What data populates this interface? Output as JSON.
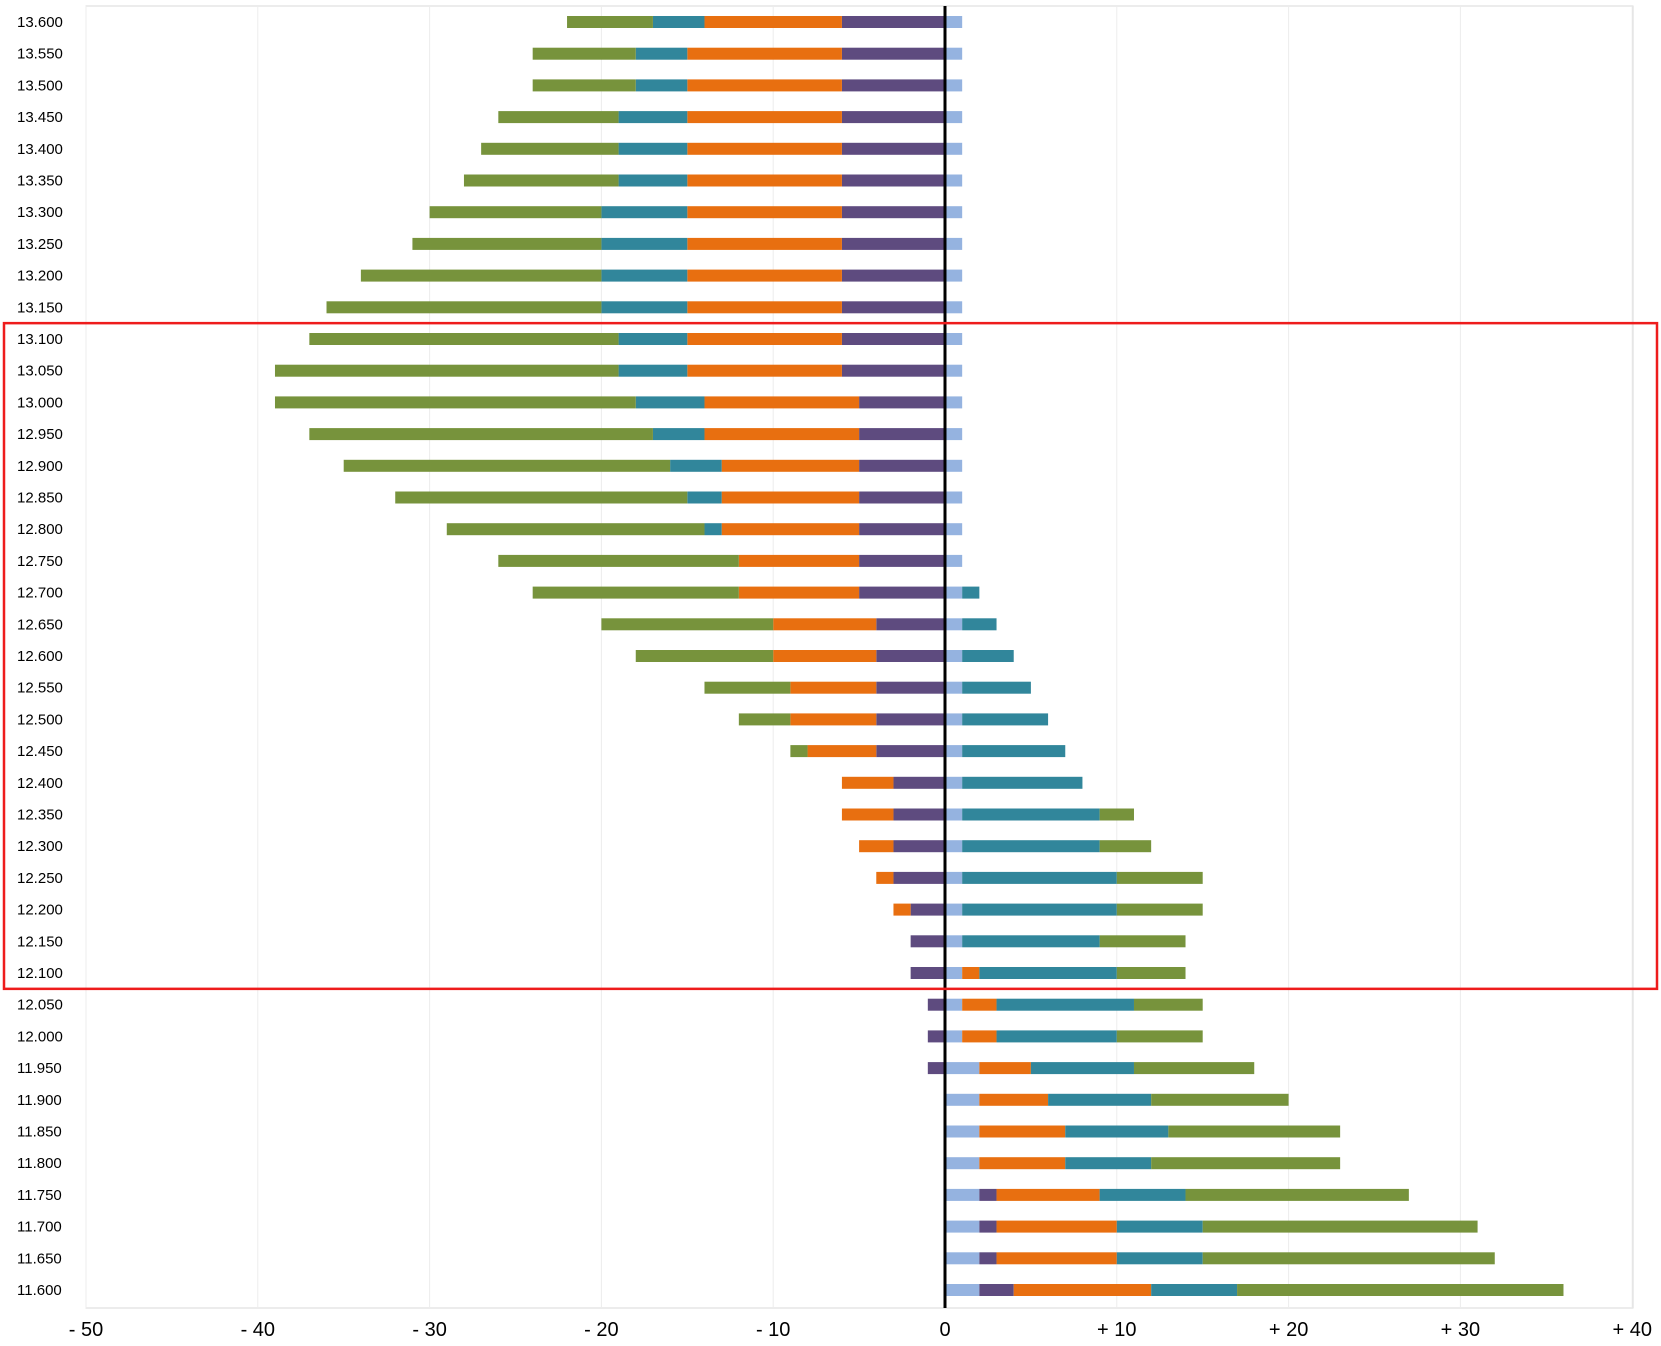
{
  "chart_data": {
    "type": "bar",
    "orientation": "horizontal",
    "stacked": "diverging",
    "xlim": [
      -50,
      40
    ],
    "x_ticks": [
      -50,
      -40,
      -30,
      -20,
      -10,
      0,
      10,
      20,
      30,
      40
    ],
    "x_tick_labels": [
      "- 50",
      "- 40",
      "- 30",
      "- 20",
      "- 10",
      "0",
      "+ 10",
      "+ 20",
      "+ 30",
      "+ 40"
    ],
    "grid": "vertical",
    "zero_line": true,
    "colors": {
      "purple": "#5e4b7f",
      "orange": "#e86f10",
      "teal": "#31869b",
      "green": "#77933c",
      "lightblue": "#95b3e0"
    },
    "highlight": {
      "from": "13.100",
      "to": "12.100",
      "color": "#ee1c1c"
    },
    "categories": [
      "13.600",
      "13.550",
      "13.500",
      "13.450",
      "13.400",
      "13.350",
      "13.300",
      "13.250",
      "13.200",
      "13.150",
      "13.100",
      "13.050",
      "13.000",
      "12.950",
      "12.900",
      "12.850",
      "12.800",
      "12.750",
      "12.700",
      "12.650",
      "12.600",
      "12.550",
      "12.500",
      "12.450",
      "12.400",
      "12.350",
      "12.300",
      "12.250",
      "12.200",
      "12.150",
      "12.100",
      "12.050",
      "12.000",
      "11.950",
      "11.900",
      "11.850",
      "11.800",
      "11.750",
      "11.700",
      "11.650",
      "11.600"
    ],
    "rows": [
      {
        "neg": [
          {
            "c": "purple",
            "v": 6
          },
          {
            "c": "orange",
            "v": 8
          },
          {
            "c": "teal",
            "v": 3
          },
          {
            "c": "green",
            "v": 5
          }
        ],
        "pos": [
          {
            "c": "lightblue",
            "v": 1
          }
        ]
      },
      {
        "neg": [
          {
            "c": "purple",
            "v": 6
          },
          {
            "c": "orange",
            "v": 9
          },
          {
            "c": "teal",
            "v": 3
          },
          {
            "c": "green",
            "v": 6
          }
        ],
        "pos": [
          {
            "c": "lightblue",
            "v": 1
          }
        ]
      },
      {
        "neg": [
          {
            "c": "purple",
            "v": 6
          },
          {
            "c": "orange",
            "v": 9
          },
          {
            "c": "teal",
            "v": 3
          },
          {
            "c": "green",
            "v": 6
          }
        ],
        "pos": [
          {
            "c": "lightblue",
            "v": 1
          }
        ]
      },
      {
        "neg": [
          {
            "c": "purple",
            "v": 6
          },
          {
            "c": "orange",
            "v": 9
          },
          {
            "c": "teal",
            "v": 4
          },
          {
            "c": "green",
            "v": 7
          }
        ],
        "pos": [
          {
            "c": "lightblue",
            "v": 1
          }
        ]
      },
      {
        "neg": [
          {
            "c": "purple",
            "v": 6
          },
          {
            "c": "orange",
            "v": 9
          },
          {
            "c": "teal",
            "v": 4
          },
          {
            "c": "green",
            "v": 8
          }
        ],
        "pos": [
          {
            "c": "lightblue",
            "v": 1
          }
        ]
      },
      {
        "neg": [
          {
            "c": "purple",
            "v": 6
          },
          {
            "c": "orange",
            "v": 9
          },
          {
            "c": "teal",
            "v": 4
          },
          {
            "c": "green",
            "v": 9
          }
        ],
        "pos": [
          {
            "c": "lightblue",
            "v": 1
          }
        ]
      },
      {
        "neg": [
          {
            "c": "purple",
            "v": 6
          },
          {
            "c": "orange",
            "v": 9
          },
          {
            "c": "teal",
            "v": 5
          },
          {
            "c": "green",
            "v": 10
          }
        ],
        "pos": [
          {
            "c": "lightblue",
            "v": 1
          }
        ]
      },
      {
        "neg": [
          {
            "c": "purple",
            "v": 6
          },
          {
            "c": "orange",
            "v": 9
          },
          {
            "c": "teal",
            "v": 5
          },
          {
            "c": "green",
            "v": 11
          }
        ],
        "pos": [
          {
            "c": "lightblue",
            "v": 1
          }
        ]
      },
      {
        "neg": [
          {
            "c": "purple",
            "v": 6
          },
          {
            "c": "orange",
            "v": 9
          },
          {
            "c": "teal",
            "v": 5
          },
          {
            "c": "green",
            "v": 14
          }
        ],
        "pos": [
          {
            "c": "lightblue",
            "v": 1
          }
        ]
      },
      {
        "neg": [
          {
            "c": "purple",
            "v": 6
          },
          {
            "c": "orange",
            "v": 9
          },
          {
            "c": "teal",
            "v": 5
          },
          {
            "c": "green",
            "v": 16
          }
        ],
        "pos": [
          {
            "c": "lightblue",
            "v": 1
          }
        ]
      },
      {
        "neg": [
          {
            "c": "purple",
            "v": 6
          },
          {
            "c": "orange",
            "v": 9
          },
          {
            "c": "teal",
            "v": 4
          },
          {
            "c": "green",
            "v": 18
          }
        ],
        "pos": [
          {
            "c": "lightblue",
            "v": 1
          }
        ]
      },
      {
        "neg": [
          {
            "c": "purple",
            "v": 6
          },
          {
            "c": "orange",
            "v": 9
          },
          {
            "c": "teal",
            "v": 4
          },
          {
            "c": "green",
            "v": 20
          }
        ],
        "pos": [
          {
            "c": "lightblue",
            "v": 1
          }
        ]
      },
      {
        "neg": [
          {
            "c": "purple",
            "v": 5
          },
          {
            "c": "orange",
            "v": 9
          },
          {
            "c": "teal",
            "v": 4
          },
          {
            "c": "green",
            "v": 21
          }
        ],
        "pos": [
          {
            "c": "lightblue",
            "v": 1
          }
        ]
      },
      {
        "neg": [
          {
            "c": "purple",
            "v": 5
          },
          {
            "c": "orange",
            "v": 9
          },
          {
            "c": "teal",
            "v": 3
          },
          {
            "c": "green",
            "v": 20
          }
        ],
        "pos": [
          {
            "c": "lightblue",
            "v": 1
          }
        ]
      },
      {
        "neg": [
          {
            "c": "purple",
            "v": 5
          },
          {
            "c": "orange",
            "v": 8
          },
          {
            "c": "teal",
            "v": 3
          },
          {
            "c": "green",
            "v": 19
          }
        ],
        "pos": [
          {
            "c": "lightblue",
            "v": 1
          }
        ]
      },
      {
        "neg": [
          {
            "c": "purple",
            "v": 5
          },
          {
            "c": "orange",
            "v": 8
          },
          {
            "c": "teal",
            "v": 2
          },
          {
            "c": "green",
            "v": 17
          }
        ],
        "pos": [
          {
            "c": "lightblue",
            "v": 1
          }
        ]
      },
      {
        "neg": [
          {
            "c": "purple",
            "v": 5
          },
          {
            "c": "orange",
            "v": 8
          },
          {
            "c": "teal",
            "v": 1
          },
          {
            "c": "green",
            "v": 15
          }
        ],
        "pos": [
          {
            "c": "lightblue",
            "v": 1
          }
        ]
      },
      {
        "neg": [
          {
            "c": "purple",
            "v": 5
          },
          {
            "c": "orange",
            "v": 7
          },
          {
            "c": "green",
            "v": 14
          }
        ],
        "pos": [
          {
            "c": "lightblue",
            "v": 1
          }
        ]
      },
      {
        "neg": [
          {
            "c": "purple",
            "v": 5
          },
          {
            "c": "orange",
            "v": 7
          },
          {
            "c": "green",
            "v": 12
          }
        ],
        "pos": [
          {
            "c": "lightblue",
            "v": 1
          },
          {
            "c": "teal",
            "v": 1
          }
        ]
      },
      {
        "neg": [
          {
            "c": "purple",
            "v": 4
          },
          {
            "c": "orange",
            "v": 6
          },
          {
            "c": "green",
            "v": 10
          }
        ],
        "pos": [
          {
            "c": "lightblue",
            "v": 1
          },
          {
            "c": "teal",
            "v": 2
          }
        ]
      },
      {
        "neg": [
          {
            "c": "purple",
            "v": 4
          },
          {
            "c": "orange",
            "v": 6
          },
          {
            "c": "green",
            "v": 8
          }
        ],
        "pos": [
          {
            "c": "lightblue",
            "v": 1
          },
          {
            "c": "teal",
            "v": 3
          }
        ]
      },
      {
        "neg": [
          {
            "c": "purple",
            "v": 4
          },
          {
            "c": "orange",
            "v": 5
          },
          {
            "c": "green",
            "v": 5
          }
        ],
        "pos": [
          {
            "c": "lightblue",
            "v": 1
          },
          {
            "c": "teal",
            "v": 4
          }
        ]
      },
      {
        "neg": [
          {
            "c": "purple",
            "v": 4
          },
          {
            "c": "orange",
            "v": 5
          },
          {
            "c": "green",
            "v": 3
          }
        ],
        "pos": [
          {
            "c": "lightblue",
            "v": 1
          },
          {
            "c": "teal",
            "v": 5
          }
        ]
      },
      {
        "neg": [
          {
            "c": "purple",
            "v": 4
          },
          {
            "c": "orange",
            "v": 4
          },
          {
            "c": "green",
            "v": 1
          }
        ],
        "pos": [
          {
            "c": "lightblue",
            "v": 1
          },
          {
            "c": "teal",
            "v": 6
          }
        ]
      },
      {
        "neg": [
          {
            "c": "purple",
            "v": 3
          },
          {
            "c": "orange",
            "v": 3
          }
        ],
        "pos": [
          {
            "c": "lightblue",
            "v": 1
          },
          {
            "c": "teal",
            "v": 7
          }
        ]
      },
      {
        "neg": [
          {
            "c": "purple",
            "v": 3
          },
          {
            "c": "orange",
            "v": 3
          }
        ],
        "pos": [
          {
            "c": "lightblue",
            "v": 1
          },
          {
            "c": "teal",
            "v": 8
          },
          {
            "c": "green",
            "v": 2
          }
        ]
      },
      {
        "neg": [
          {
            "c": "purple",
            "v": 3
          },
          {
            "c": "orange",
            "v": 2
          }
        ],
        "pos": [
          {
            "c": "lightblue",
            "v": 1
          },
          {
            "c": "teal",
            "v": 8
          },
          {
            "c": "green",
            "v": 3
          }
        ]
      },
      {
        "neg": [
          {
            "c": "purple",
            "v": 3
          },
          {
            "c": "orange",
            "v": 1
          }
        ],
        "pos": [
          {
            "c": "lightblue",
            "v": 1
          },
          {
            "c": "teal",
            "v": 9
          },
          {
            "c": "green",
            "v": 5
          }
        ]
      },
      {
        "neg": [
          {
            "c": "purple",
            "v": 2
          },
          {
            "c": "orange",
            "v": 1
          }
        ],
        "pos": [
          {
            "c": "lightblue",
            "v": 1
          },
          {
            "c": "teal",
            "v": 9
          },
          {
            "c": "green",
            "v": 5
          }
        ]
      },
      {
        "neg": [
          {
            "c": "purple",
            "v": 2
          }
        ],
        "pos": [
          {
            "c": "lightblue",
            "v": 1
          },
          {
            "c": "teal",
            "v": 8
          },
          {
            "c": "green",
            "v": 5
          }
        ]
      },
      {
        "neg": [
          {
            "c": "purple",
            "v": 2
          }
        ],
        "pos": [
          {
            "c": "lightblue",
            "v": 1
          },
          {
            "c": "orange",
            "v": 1
          },
          {
            "c": "teal",
            "v": 8
          },
          {
            "c": "green",
            "v": 4
          }
        ]
      },
      {
        "neg": [
          {
            "c": "purple",
            "v": 1
          }
        ],
        "pos": [
          {
            "c": "lightblue",
            "v": 1
          },
          {
            "c": "orange",
            "v": 2
          },
          {
            "c": "teal",
            "v": 8
          },
          {
            "c": "green",
            "v": 4
          }
        ]
      },
      {
        "neg": [
          {
            "c": "purple",
            "v": 1
          }
        ],
        "pos": [
          {
            "c": "lightblue",
            "v": 1
          },
          {
            "c": "orange",
            "v": 2
          },
          {
            "c": "teal",
            "v": 7
          },
          {
            "c": "green",
            "v": 5
          }
        ]
      },
      {
        "neg": [
          {
            "c": "purple",
            "v": 1
          }
        ],
        "pos": [
          {
            "c": "lightblue",
            "v": 2
          },
          {
            "c": "orange",
            "v": 3
          },
          {
            "c": "teal",
            "v": 6
          },
          {
            "c": "green",
            "v": 7
          }
        ]
      },
      {
        "neg": [],
        "pos": [
          {
            "c": "lightblue",
            "v": 2
          },
          {
            "c": "orange",
            "v": 4
          },
          {
            "c": "teal",
            "v": 6
          },
          {
            "c": "green",
            "v": 8
          }
        ]
      },
      {
        "neg": [],
        "pos": [
          {
            "c": "lightblue",
            "v": 2
          },
          {
            "c": "orange",
            "v": 5
          },
          {
            "c": "teal",
            "v": 6
          },
          {
            "c": "green",
            "v": 10
          }
        ]
      },
      {
        "neg": [],
        "pos": [
          {
            "c": "lightblue",
            "v": 2
          },
          {
            "c": "orange",
            "v": 5
          },
          {
            "c": "teal",
            "v": 5
          },
          {
            "c": "green",
            "v": 11
          }
        ]
      },
      {
        "neg": [],
        "pos": [
          {
            "c": "lightblue",
            "v": 2
          },
          {
            "c": "purple",
            "v": 1
          },
          {
            "c": "orange",
            "v": 6
          },
          {
            "c": "teal",
            "v": 5
          },
          {
            "c": "green",
            "v": 13
          }
        ]
      },
      {
        "neg": [],
        "pos": [
          {
            "c": "lightblue",
            "v": 2
          },
          {
            "c": "purple",
            "v": 1
          },
          {
            "c": "orange",
            "v": 7
          },
          {
            "c": "teal",
            "v": 5
          },
          {
            "c": "green",
            "v": 16
          }
        ]
      },
      {
        "neg": [],
        "pos": [
          {
            "c": "lightblue",
            "v": 2
          },
          {
            "c": "purple",
            "v": 1
          },
          {
            "c": "orange",
            "v": 7
          },
          {
            "c": "teal",
            "v": 5
          },
          {
            "c": "green",
            "v": 17
          }
        ]
      },
      {
        "neg": [],
        "pos": [
          {
            "c": "lightblue",
            "v": 2
          },
          {
            "c": "purple",
            "v": 2
          },
          {
            "c": "orange",
            "v": 8
          },
          {
            "c": "teal",
            "v": 5
          },
          {
            "c": "green",
            "v": 19
          }
        ]
      }
    ]
  }
}
